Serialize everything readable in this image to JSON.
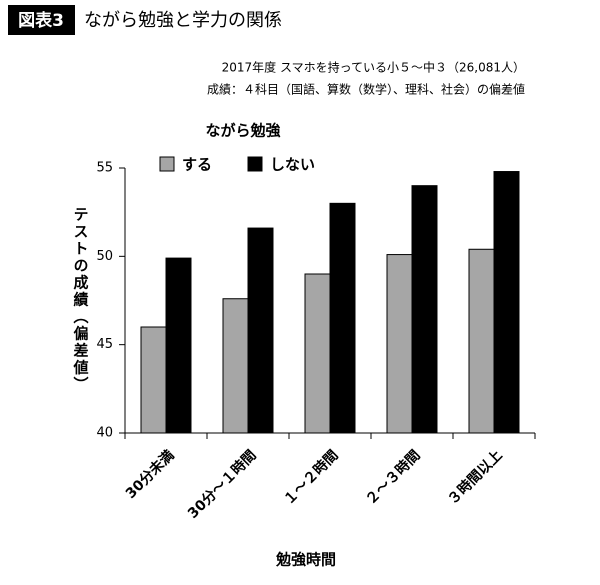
{
  "chart_data": {
    "type": "bar",
    "label": "図表3",
    "title": "ながら勉強と学力の関係",
    "subtitle": [
      "2017年度 スマホを持っている小５～中３（26,081人）",
      "成績：４科目（国語、算数（数学）、理科、社会）の偏差値"
    ],
    "legend_title": "ながら勉強",
    "xlabel": "勉強時間",
    "ylabel": "テストの成績（偏差値）",
    "categories": [
      "30分未満",
      "30分～１時間",
      "１～２時間",
      "２～３時間",
      "３時間以上"
    ],
    "series": [
      {
        "name": "する",
        "color": "#a6a6a6",
        "values": [
          46.0,
          47.6,
          49.0,
          50.1,
          50.4
        ]
      },
      {
        "name": "しない",
        "color": "#000000",
        "values": [
          49.9,
          51.6,
          53.0,
          54.0,
          54.8
        ]
      }
    ],
    "ylim": [
      40,
      55
    ],
    "yticks": [
      40,
      45,
      50,
      55
    ],
    "grid": false
  }
}
